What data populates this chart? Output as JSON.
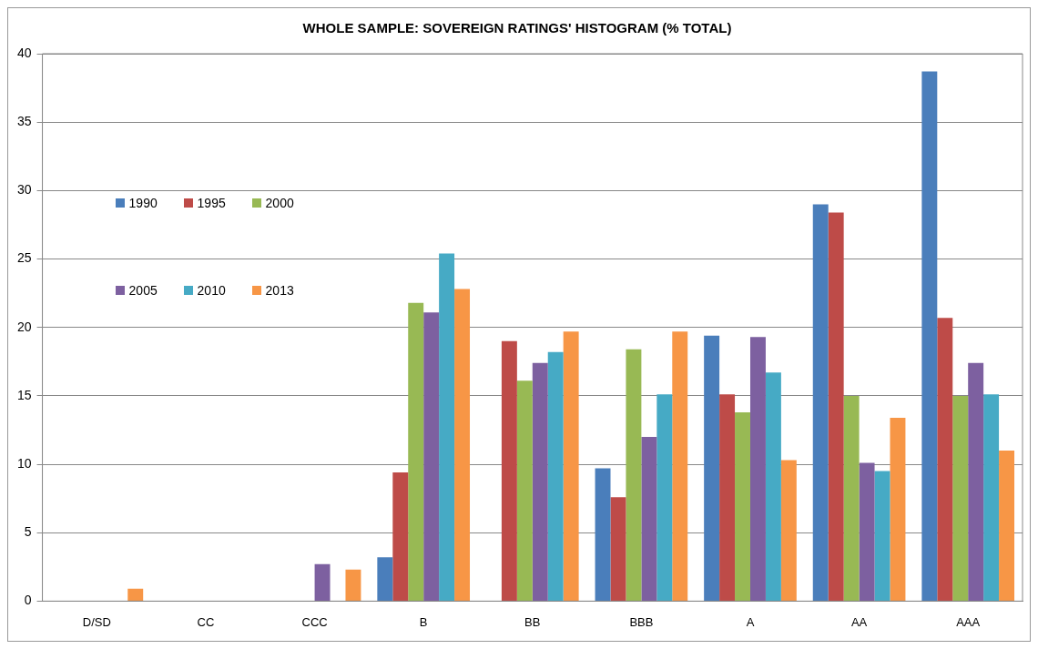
{
  "chart_data": {
    "type": "bar",
    "title": "WHOLE SAMPLE: SOVEREIGN RATINGS' HISTOGRAM (% TOTAL)",
    "categories": [
      "D/SD",
      "CC",
      "CCC",
      "B",
      "BB",
      "BBB",
      "A",
      "AA",
      "AAA"
    ],
    "series": [
      {
        "name": "1990",
        "color": "#4a7ebb",
        "values": [
          0,
          0,
          0,
          3.2,
          0,
          9.7,
          19.4,
          29.0,
          38.7
        ]
      },
      {
        "name": "1995",
        "color": "#be4b48",
        "values": [
          0,
          0,
          0,
          9.4,
          19.0,
          7.6,
          15.1,
          28.4,
          20.7
        ]
      },
      {
        "name": "2000",
        "color": "#98b954",
        "values": [
          0,
          0,
          0,
          21.8,
          16.1,
          18.4,
          13.8,
          15.0,
          15.0
        ]
      },
      {
        "name": "2005",
        "color": "#7d60a0",
        "values": [
          0,
          0,
          2.7,
          21.1,
          17.4,
          12.0,
          19.3,
          10.1,
          17.4
        ]
      },
      {
        "name": "2010",
        "color": "#46aac5",
        "values": [
          0,
          0,
          0,
          25.4,
          18.2,
          15.1,
          16.7,
          9.5,
          15.1
        ]
      },
      {
        "name": "2013",
        "color": "#f79646",
        "values": [
          0.9,
          0,
          2.3,
          22.8,
          19.7,
          19.7,
          10.3,
          13.4,
          11.0
        ]
      }
    ],
    "ylim": [
      0,
      40
    ],
    "yticks": [
      0,
      5,
      10,
      15,
      20,
      25,
      30,
      35,
      40
    ],
    "grid": "y",
    "legend": "top left"
  }
}
